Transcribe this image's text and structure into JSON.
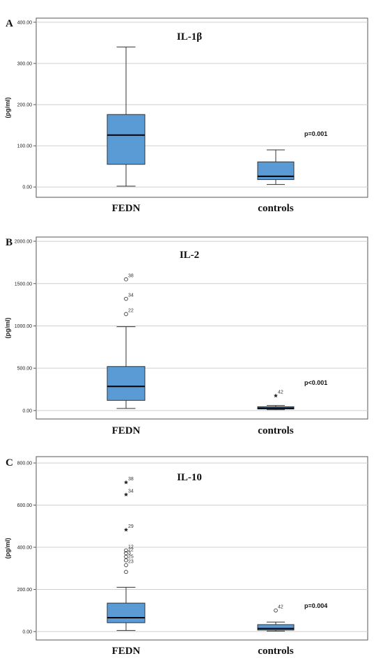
{
  "colors": {
    "box_fill": "#5b9bd5",
    "box_stroke": "#333333",
    "grid": "#cfcfcf",
    "frame": "#555555"
  },
  "chart_data": [
    {
      "type": "boxplot",
      "panel": "A",
      "title": "IL-1β",
      "ylabel": "(pg/ml)",
      "ylim": [
        -25,
        410
      ],
      "yticks": [
        "0.00",
        "100.00",
        "200.00",
        "300.00",
        "400.00"
      ],
      "ytick_values": [
        0,
        100,
        200,
        300,
        400
      ],
      "grid": true,
      "categories": [
        "FEDN",
        "controls"
      ],
      "boxes": [
        {
          "category": "FEDN",
          "min": 2,
          "q1": 55,
          "median": 126,
          "q3": 176,
          "max": 340,
          "outliers": []
        },
        {
          "category": "controls",
          "min": 6,
          "q1": 18,
          "median": 26,
          "q3": 61,
          "max": 90,
          "outliers": []
        }
      ],
      "annotation": "p=0.001"
    },
    {
      "type": "boxplot",
      "panel": "B",
      "title": "IL-2",
      "ylabel": "(pg/ml)",
      "ylim": [
        -100,
        2050
      ],
      "yticks": [
        "0.00",
        "500.00",
        "1000.00",
        "1500.00",
        "2000.00"
      ],
      "ytick_values": [
        0,
        500,
        1000,
        1500,
        2000
      ],
      "grid": true,
      "categories": [
        "FEDN",
        "controls"
      ],
      "boxes": [
        {
          "category": "FEDN",
          "min": 25,
          "q1": 120,
          "median": 285,
          "q3": 520,
          "max": 990,
          "outliers": [
            {
              "value": 1550,
              "label": "38",
              "marker": "circle"
            },
            {
              "value": 1320,
              "label": "34",
              "marker": "circle"
            },
            {
              "value": 1140,
              "label": "22",
              "marker": "circle"
            }
          ]
        },
        {
          "category": "controls",
          "min": 10,
          "q1": 18,
          "median": 28,
          "q3": 45,
          "max": 60,
          "outliers": [
            {
              "value": 175,
              "label": "42",
              "marker": "star"
            }
          ]
        }
      ],
      "annotation": "p<0.001"
    },
    {
      "type": "boxplot",
      "panel": "C",
      "title": "IL-10",
      "ylabel": "(pg/ml)",
      "ylim": [
        -40,
        830
      ],
      "yticks": [
        "0.00",
        "200.00",
        "400.00",
        "600.00",
        "800.00"
      ],
      "ytick_values": [
        0,
        200,
        400,
        600,
        800
      ],
      "grid": true,
      "categories": [
        "FEDN",
        "controls"
      ],
      "boxes": [
        {
          "category": "FEDN",
          "min": 5,
          "q1": 42,
          "median": 66,
          "q3": 135,
          "max": 210,
          "outliers": [
            {
              "value": 708,
              "label": "38",
              "marker": "star"
            },
            {
              "value": 650,
              "label": "34",
              "marker": "star"
            },
            {
              "value": 483,
              "label": "29",
              "marker": "star"
            },
            {
              "value": 385,
              "label": "12",
              "marker": "circle"
            },
            {
              "value": 372,
              "label": "22",
              "marker": "circle"
            },
            {
              "value": 355,
              "label": "3",
              "marker": "circle"
            },
            {
              "value": 338,
              "label": "25",
              "marker": "circle"
            },
            {
              "value": 315,
              "label": "23",
              "marker": "circle"
            },
            {
              "value": 283,
              "label": "",
              "marker": "circle"
            }
          ]
        },
        {
          "category": "controls",
          "min": 2,
          "q1": 7,
          "median": 14,
          "q3": 33,
          "max": 45,
          "outliers": [
            {
              "value": 100,
              "label": "42",
              "marker": "circle"
            }
          ]
        }
      ],
      "annotation": "p=0.004"
    }
  ]
}
